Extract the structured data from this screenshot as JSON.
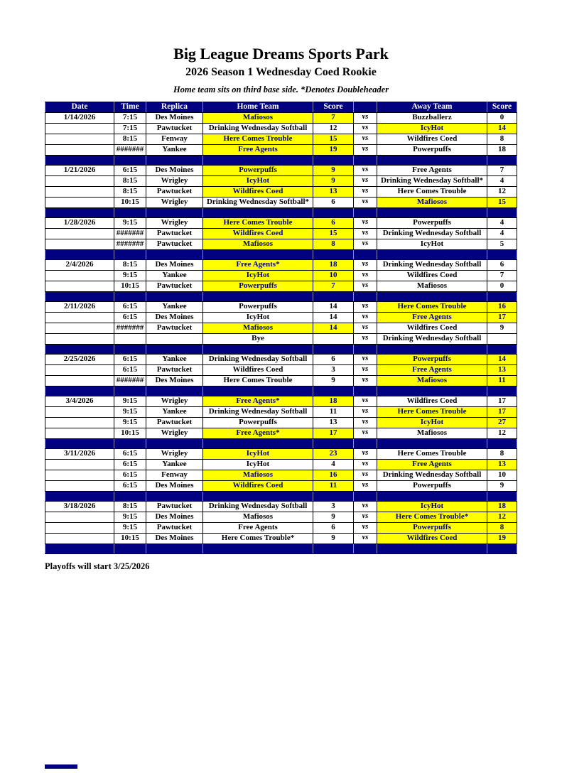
{
  "title": "Big League Dreams Sports Park",
  "subtitle": "2026 Season 1 Wednesday Coed Rookie",
  "note": "Home team sits on third base side.  *Denotes Doubleheader",
  "footer": "Playoffs will start 3/25/2026",
  "colors": {
    "header_bg": "#000080",
    "separator_bg": "#000080",
    "highlight_bg": "#FFFF00",
    "highlight_text": "#000080"
  },
  "table": {
    "headers": [
      "Date",
      "Time",
      "Replica",
      "Home Team",
      "Score",
      "",
      "Away Team",
      "Score"
    ],
    "vs_label": "vs",
    "groups": [
      {
        "date": "1/14/2026",
        "games": [
          {
            "time": "7:15",
            "replica": "Des Moines",
            "home": "Mafiosos",
            "home_score": "7",
            "away": "Buzzballerz",
            "away_score": "0",
            "winner": "home"
          },
          {
            "time": "7:15",
            "replica": "Pawtucket",
            "home": "Drinking Wednesday Softball",
            "home_score": "12",
            "away": "IcyHot",
            "away_score": "14",
            "winner": "away"
          },
          {
            "time": "8:15",
            "replica": "Fenway",
            "home": "Here Comes Trouble",
            "home_score": "15",
            "away": "Wildfires Coed",
            "away_score": "8",
            "winner": "home"
          },
          {
            "time": "#######",
            "replica": "Yankee",
            "home": "Free Agents",
            "home_score": "19",
            "away": "Powerpuffs",
            "away_score": "18",
            "winner": "home"
          }
        ]
      },
      {
        "date": "1/21/2026",
        "games": [
          {
            "time": "6:15",
            "replica": "Des Moines",
            "home": "Powerpuffs",
            "home_score": "9",
            "away": "Free Agents",
            "away_score": "7",
            "winner": "home"
          },
          {
            "time": "8:15",
            "replica": "Wrigley",
            "home": "IcyHot",
            "home_score": "9",
            "away": "Drinking Wednesday Softball*",
            "away_score": "4",
            "winner": "home"
          },
          {
            "time": "8:15",
            "replica": "Pawtucket",
            "home": "Wildfires Coed",
            "home_score": "13",
            "away": "Here Comes Trouble",
            "away_score": "12",
            "winner": "home"
          },
          {
            "time": "10:15",
            "replica": "Wrigley",
            "home": "Drinking Wednesday Softball*",
            "home_score": "6",
            "away": "Mafiosos",
            "away_score": "15",
            "winner": "away"
          }
        ]
      },
      {
        "date": "1/28/2026",
        "games": [
          {
            "time": "9:15",
            "replica": "Wrigley",
            "home": "Here Comes Trouble",
            "home_score": "6",
            "away": "Powerpuffs",
            "away_score": "4",
            "winner": "home"
          },
          {
            "time": "#######",
            "replica": "Pawtucket",
            "home": "Wildfires Coed",
            "home_score": "15",
            "away": "Drinking Wednesday Softball",
            "away_score": "4",
            "winner": "home"
          },
          {
            "time": "#######",
            "replica": "Pawtucket",
            "home": "Mafiosos",
            "home_score": "8",
            "away": "IcyHot",
            "away_score": "5",
            "winner": "home"
          }
        ]
      },
      {
        "date": "2/4/2026",
        "games": [
          {
            "time": "8:15",
            "replica": "Des Moines",
            "home": "Free Agents*",
            "home_score": "18",
            "away": "Drinking Wednesday Softball",
            "away_score": "6",
            "winner": "home"
          },
          {
            "time": "9:15",
            "replica": "Yankee",
            "home": "IcyHot",
            "home_score": "10",
            "away": "Wildfires Coed",
            "away_score": "7",
            "winner": "home"
          },
          {
            "time": "10:15",
            "replica": "Pawtucket",
            "home": "Powerpuffs",
            "home_score": "7",
            "away": "Mafiosos",
            "away_score": "0",
            "winner": "home"
          }
        ]
      },
      {
        "date": "2/11/2026",
        "games": [
          {
            "time": "6:15",
            "replica": "Yankee",
            "home": "Powerpuffs",
            "home_score": "14",
            "away": "Here Comes Trouble",
            "away_score": "16",
            "winner": "away"
          },
          {
            "time": "6:15",
            "replica": "Des Moines",
            "home": "IcyHot",
            "home_score": "14",
            "away": "Free Agents",
            "away_score": "17",
            "winner": "away"
          },
          {
            "time": "#######",
            "replica": "Pawtucket",
            "home": "Mafiosos",
            "home_score": "14",
            "away": "Wildfires Coed",
            "away_score": "9",
            "winner": "home"
          },
          {
            "time": "",
            "replica": "",
            "home": "Bye",
            "home_score": "",
            "away": "Drinking Wednesday Softball",
            "away_score": "",
            "winner": "none"
          }
        ]
      },
      {
        "date": "2/25/2026",
        "games": [
          {
            "time": "6:15",
            "replica": "Yankee",
            "home": "Drinking Wednesday Softball",
            "home_score": "6",
            "away": "Powerpuffs",
            "away_score": "14",
            "winner": "away"
          },
          {
            "time": "6:15",
            "replica": "Pawtucket",
            "home": "Wildfires Coed",
            "home_score": "3",
            "away": "Free Agents",
            "away_score": "13",
            "winner": "away"
          },
          {
            "time": "#######",
            "replica": "Des Moines",
            "home": "Here Comes Trouble",
            "home_score": "9",
            "away": "Mafiosos",
            "away_score": "11",
            "winner": "away"
          }
        ]
      },
      {
        "date": "3/4/2026",
        "games": [
          {
            "time": "9:15",
            "replica": "Wrigley",
            "home": "Free Agents*",
            "home_score": "18",
            "away": "Wildfires Coed",
            "away_score": "17",
            "winner": "home"
          },
          {
            "time": "9:15",
            "replica": "Yankee",
            "home": "Drinking Wednesday Softball",
            "home_score": "11",
            "away": "Here Comes Trouble",
            "away_score": "17",
            "winner": "away"
          },
          {
            "time": "9:15",
            "replica": "Pawtucket",
            "home": "Powerpuffs",
            "home_score": "13",
            "away": "IcyHot",
            "away_score": "27",
            "winner": "away"
          },
          {
            "time": "10:15",
            "replica": "Wrigley",
            "home": "Free Agents*",
            "home_score": "17",
            "away": "Mafiosos",
            "away_score": "12",
            "winner": "home"
          }
        ]
      },
      {
        "date": "3/11/2026",
        "games": [
          {
            "time": "6:15",
            "replica": "Wrigley",
            "home": "IcyHot",
            "home_score": "23",
            "away": "Here Comes Trouble",
            "away_score": "8",
            "winner": "home"
          },
          {
            "time": "6:15",
            "replica": "Yankee",
            "home": "IcyHot",
            "home_score": "4",
            "away": "Free Agents",
            "away_score": "13",
            "winner": "away"
          },
          {
            "time": "6:15",
            "replica": "Fenway",
            "home": "Mafiosos",
            "home_score": "16",
            "away": "Drinking Wednesday Softball",
            "away_score": "10",
            "winner": "home"
          },
          {
            "time": "6:15",
            "replica": "Des Moines",
            "home": "Wildfires Coed",
            "home_score": "11",
            "away": "Powerpuffs",
            "away_score": "9",
            "winner": "home"
          }
        ]
      },
      {
        "date": "3/18/2026",
        "games": [
          {
            "time": "8:15",
            "replica": "Pawtucket",
            "home": "Drinking Wednesday Softball",
            "home_score": "3",
            "away": "IcyHot",
            "away_score": "18",
            "winner": "away"
          },
          {
            "time": "9:15",
            "replica": "Des Moines",
            "home": "Mafiosos",
            "home_score": "9",
            "away": "Here Comes Trouble*",
            "away_score": "12",
            "winner": "away"
          },
          {
            "time": "9:15",
            "replica": "Pawtucket",
            "home": "Free Agents",
            "home_score": "6",
            "away": "Powerpuffs",
            "away_score": "8",
            "winner": "away"
          },
          {
            "time": "10:15",
            "replica": "Des Moines",
            "home": "Here Comes Trouble*",
            "home_score": "9",
            "away": "Wildfires Coed",
            "away_score": "19",
            "winner": "away"
          }
        ]
      }
    ]
  }
}
